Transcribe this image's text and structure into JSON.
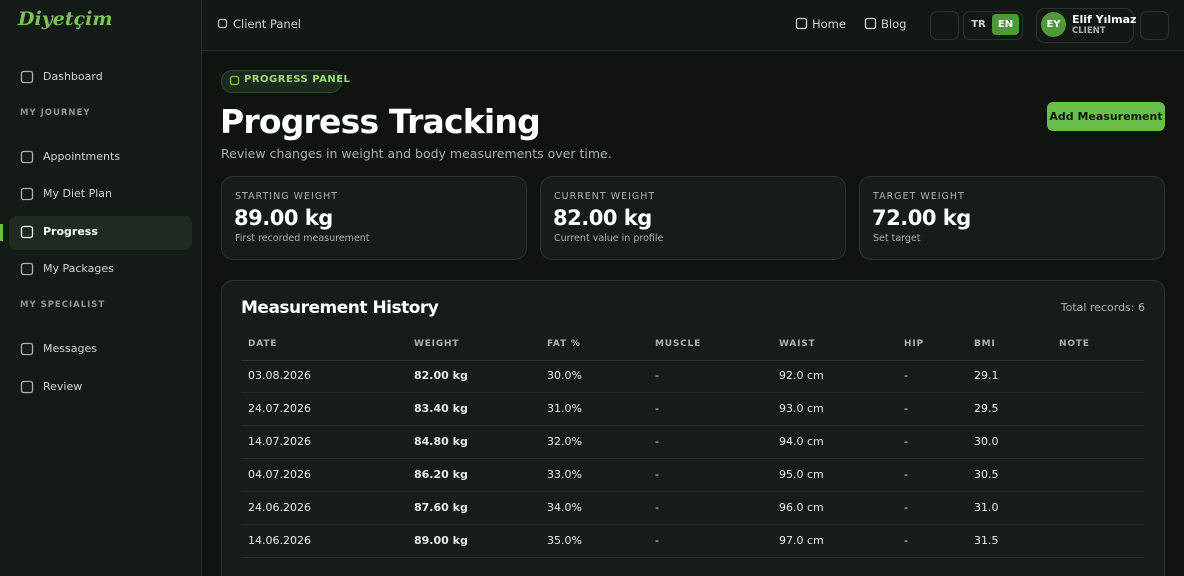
{
  "brand": "Diyetçim",
  "header": {
    "breadcrumb": "Client Panel",
    "nav": [
      "Home",
      "Blog"
    ],
    "languages": [
      "TR",
      "EN"
    ],
    "user": {
      "initials": "EY",
      "name": "Elif Yılmaz",
      "role": "CLIENT"
    }
  },
  "sidebar": {
    "top": "Dashboard",
    "groups": [
      {
        "title": "MY JOURNEY",
        "items": [
          "Appointments",
          "My Diet Plan",
          "Progress",
          "My Packages"
        ]
      },
      {
        "title": "MY SPECIALIST",
        "items": [
          "Messages",
          "Review"
        ]
      }
    ]
  },
  "main": {
    "badge": "PROGRESS PANEL",
    "title": "Progress Tracking",
    "subtitle": "Review changes in weight and body measurements over time.",
    "button": "Add Measurement",
    "cards": [
      {
        "label": "STARTING WEIGHT",
        "value": "89.00 kg",
        "note": "First recorded measurement"
      },
      {
        "label": "CURRENT WEIGHT",
        "value": "82.00 kg",
        "note": "Current value in profile"
      },
      {
        "label": "TARGET WEIGHT",
        "value": "72.00 kg",
        "note": "Set target"
      }
    ]
  },
  "table": {
    "title": "Measurement History",
    "total": "Total records: 6",
    "columns": [
      "DATE",
      "WEIGHT",
      "FAT %",
      "MUSCLE",
      "WAIST",
      "HIP",
      "BMI",
      "NOTE"
    ],
    "rows": [
      [
        "03.08.2026",
        "82.00 kg",
        "30.0%",
        "-",
        "92.0 cm",
        "-",
        "29.1"
      ],
      [
        "24.07.2026",
        "83.40 kg",
        "31.0%",
        "-",
        "93.0 cm",
        "-",
        "29.5"
      ],
      [
        "14.07.2026",
        "84.80 kg",
        "32.0%",
        "-",
        "94.0 cm",
        "-",
        "30.0"
      ],
      [
        "04.07.2026",
        "86.20 kg",
        "33.0%",
        "-",
        "95.0 cm",
        "-",
        "30.5"
      ],
      [
        "24.06.2026",
        "87.60 kg",
        "34.0%",
        "-",
        "96.0 cm",
        "-",
        "31.0"
      ],
      [
        "14.06.2026",
        "89.00 kg",
        "35.0%",
        "-",
        "97.0 cm",
        "-",
        "31.5"
      ]
    ]
  }
}
